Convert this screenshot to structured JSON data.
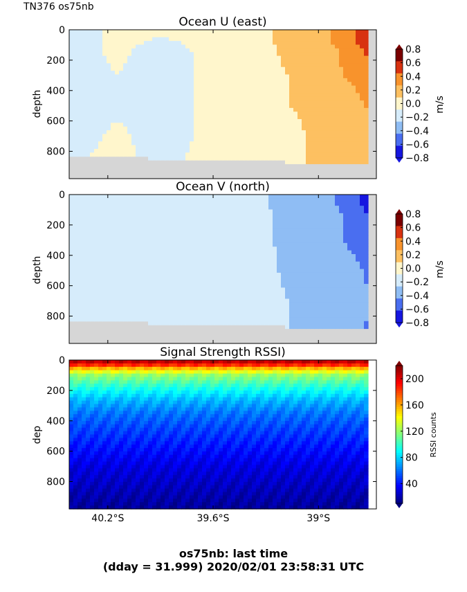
{
  "figure": {
    "corner_label": "TN376 os75nb",
    "footer_line1": "os75nb: last time",
    "footer_line2": "(dday = 31.999) 2020/02/01 23:58:31 UTC"
  },
  "chart_data": [
    {
      "type": "heatmap",
      "title": "Ocean U (east)",
      "ylabel": "depth",
      "colorbar_label": "m/s",
      "x_ticks": [
        "40.2°S",
        "39.6°S",
        "39°S"
      ],
      "y_ticks": [
        "0",
        "200",
        "400",
        "600",
        "800"
      ],
      "colorbar_ticks": [
        "0.8",
        "0.6",
        "0.4",
        "0.2",
        "0.0",
        "−0.2",
        "−0.4",
        "−0.6",
        "−0.8"
      ],
      "ylim": [
        0,
        980
      ],
      "clim": [
        -0.8,
        0.8
      ],
      "levels": [
        -0.8,
        -0.6,
        -0.4,
        -0.2,
        0.0,
        0.2,
        0.4,
        0.6,
        0.8
      ],
      "level_colors": [
        "#1616e0",
        "#4a6ef0",
        "#8fbdf4",
        "#d6ecfb",
        "#fff6cc",
        "#fdc061",
        "#f8932c",
        "#d83210",
        "#7b0000"
      ],
      "columns_lat": [
        -40.37,
        -40.15,
        -39.9,
        -39.62,
        -39.35,
        -39.17,
        -38.97,
        -38.8,
        -38.7
      ],
      "depths": [
        50,
        150,
        300,
        500,
        700,
        850
      ],
      "values": [
        [
          -0.1,
          -0.1,
          -0.1,
          -0.1,
          -0.1,
          0.0
        ],
        [
          0.05,
          0.05,
          0.0,
          -0.05,
          0.05,
          0.05
        ],
        [
          0.0,
          -0.1,
          -0.1,
          -0.1,
          -0.1,
          -0.05
        ],
        [
          0.05,
          0.05,
          0.05,
          0.05,
          0.05,
          0.05
        ],
        [
          0.1,
          0.1,
          0.1,
          0.05,
          0.05,
          0.1
        ],
        [
          0.3,
          0.25,
          0.2,
          0.2,
          0.15,
          0.15
        ],
        [
          0.35,
          0.3,
          0.3,
          0.25,
          0.25,
          0.25
        ],
        [
          0.6,
          0.5,
          0.45,
          0.3,
          0.25,
          0.25
        ],
        [
          0.8,
          0.65,
          0.55,
          0.45,
          0.3,
          0.25
        ]
      ],
      "bottom_depth": [
        830,
        830,
        850,
        860,
        865,
        870,
        880,
        890,
        890
      ]
    },
    {
      "type": "heatmap",
      "title": "Ocean V (north)",
      "ylabel": "depth",
      "colorbar_label": "m/s",
      "x_ticks": [
        "40.2°S",
        "39.6°S",
        "39°S"
      ],
      "y_ticks": [
        "0",
        "200",
        "400",
        "600",
        "800"
      ],
      "colorbar_ticks": [
        "0.8",
        "0.6",
        "0.4",
        "0.2",
        "0.0",
        "−0.2",
        "−0.4",
        "−0.6",
        "−0.8"
      ],
      "ylim": [
        0,
        980
      ],
      "clim": [
        -0.8,
        0.8
      ],
      "columns_lat": [
        -40.37,
        -40.15,
        -39.9,
        -39.62,
        -39.35,
        -39.17,
        -38.97,
        -38.8,
        -38.7
      ],
      "depths": [
        50,
        150,
        300,
        500,
        700,
        850
      ],
      "values": [
        [
          -0.1,
          -0.1,
          0.0,
          -0.05,
          0.0,
          -0.1
        ],
        [
          -0.1,
          -0.1,
          -0.1,
          -0.1,
          -0.1,
          0.0
        ],
        [
          -0.1,
          -0.1,
          0.0,
          -0.1,
          -0.1,
          -0.1
        ],
        [
          -0.1,
          -0.15,
          -0.15,
          -0.1,
          -0.1,
          -0.1
        ],
        [
          -0.15,
          -0.1,
          -0.15,
          -0.1,
          -0.1,
          -0.1
        ],
        [
          -0.3,
          -0.3,
          -0.25,
          -0.25,
          -0.2,
          -0.2
        ],
        [
          -0.35,
          -0.3,
          -0.3,
          -0.3,
          -0.25,
          -0.25
        ],
        [
          -0.5,
          -0.45,
          -0.45,
          -0.35,
          -0.3,
          -0.3
        ],
        [
          -0.8,
          -0.6,
          -0.5,
          -0.45,
          -0.4,
          -0.45
        ]
      ],
      "bottom_depth": [
        830,
        830,
        850,
        860,
        865,
        870,
        880,
        890,
        890
      ]
    },
    {
      "type": "heatmap",
      "title": "Signal Strength RSSI)",
      "ylabel": "dep",
      "colorbar_label": "RSSI counts",
      "x_ticks": [
        "40.2°S",
        "39.6°S",
        "39°S"
      ],
      "y_ticks": [
        "0",
        "200",
        "400",
        "600",
        "800"
      ],
      "colorbar_ticks": [
        "200",
        "160",
        "120",
        "80",
        "40"
      ],
      "ylim": [
        0,
        980
      ],
      "clim": [
        10,
        220
      ],
      "rssi_profile": {
        "depths": [
          0,
          30,
          60,
          100,
          180,
          260,
          350,
          450,
          550,
          700,
          980
        ],
        "values": [
          215,
          190,
          150,
          120,
          95,
          75,
          60,
          50,
          42,
          30,
          15
        ]
      }
    }
  ]
}
